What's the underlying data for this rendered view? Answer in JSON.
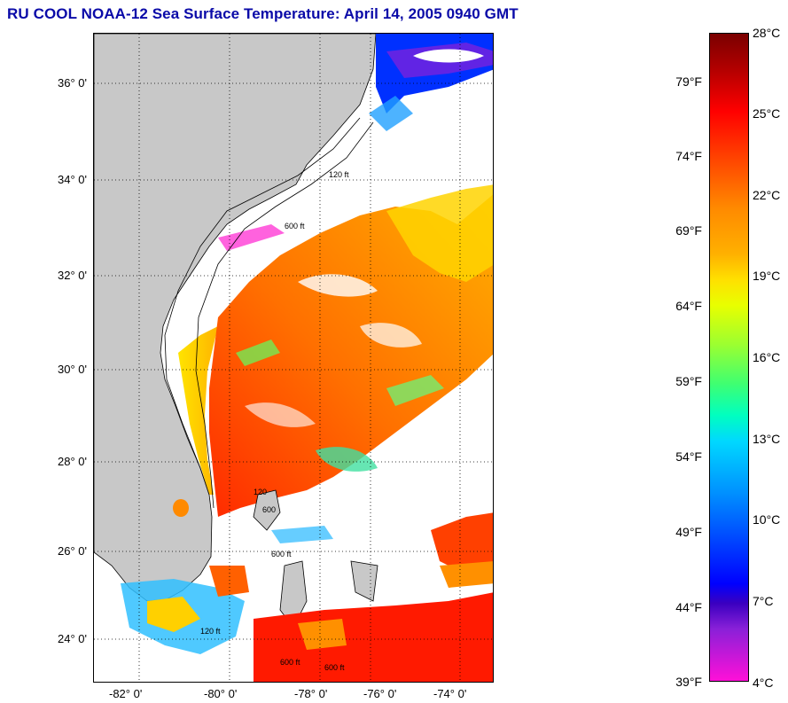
{
  "header": {
    "title": "RU COOL  NOAA-12  Sea Surface Temperature:  April 14, 2005 0940 GMT"
  },
  "map": {
    "lat_labels": [
      "36° 0'",
      "34° 0'",
      "32° 0'",
      "30° 0'",
      "28° 0'",
      "26° 0'",
      "24° 0'"
    ],
    "lon_labels": [
      "-82° 0'",
      "-80° 0'",
      "-78° 0'",
      "-76° 0'",
      "-74° 0'"
    ],
    "contour_labels": [
      "120 ft",
      "600 ft",
      "120",
      "600",
      "600 ft",
      "120 ft",
      "600 ft",
      "600 ft"
    ],
    "land_color": "#c8c8c8",
    "cloud_color": "#ffffff"
  },
  "colorbar": {
    "fahrenheit_labels": [
      "79°F",
      "74°F",
      "69°F",
      "64°F",
      "59°F",
      "54°F",
      "49°F",
      "44°F",
      "39°F"
    ],
    "celsius_labels": [
      "28°C",
      "25°C",
      "22°C",
      "19°C",
      "16°C",
      "13°C",
      "10°C",
      "7°C",
      "4°C"
    ]
  }
}
